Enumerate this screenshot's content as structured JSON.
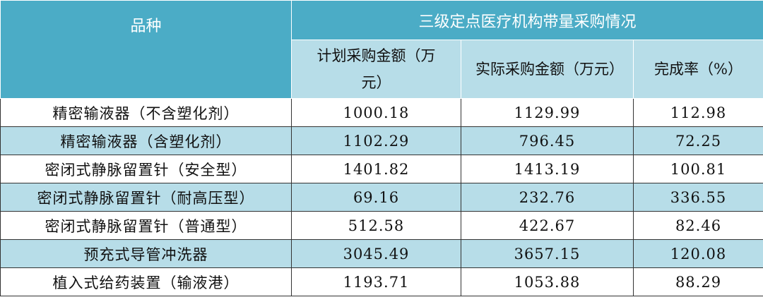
{
  "table": {
    "header": {
      "variety": "品种",
      "group": "三级定点医疗机构带量采购情况",
      "columns": [
        "计划采购金额（万元）",
        "实际采购金额（万元）",
        "完成率（%）"
      ]
    },
    "rows": [
      [
        "精密输液器（不含塑化剂）",
        "1000.18",
        "1129.99",
        "112.98"
      ],
      [
        "精密输液器（含塑化剂）",
        "1102.29",
        "796.45",
        "72.25"
      ],
      [
        "密闭式静脉留置针（安全型）",
        "1401.82",
        "1413.19",
        "100.81"
      ],
      [
        "密闭式静脉留置针（耐高压型）",
        "69.16",
        "232.76",
        "336.55"
      ],
      [
        "密闭式静脉留置针（普通型）",
        "512.58",
        "422.67",
        "82.46"
      ],
      [
        "预充式导管冲洗器",
        "3045.49",
        "3657.15",
        "120.08"
      ],
      [
        "植入式给药装置（输液港）",
        "1193.71",
        "1053.88",
        "88.29"
      ]
    ]
  }
}
